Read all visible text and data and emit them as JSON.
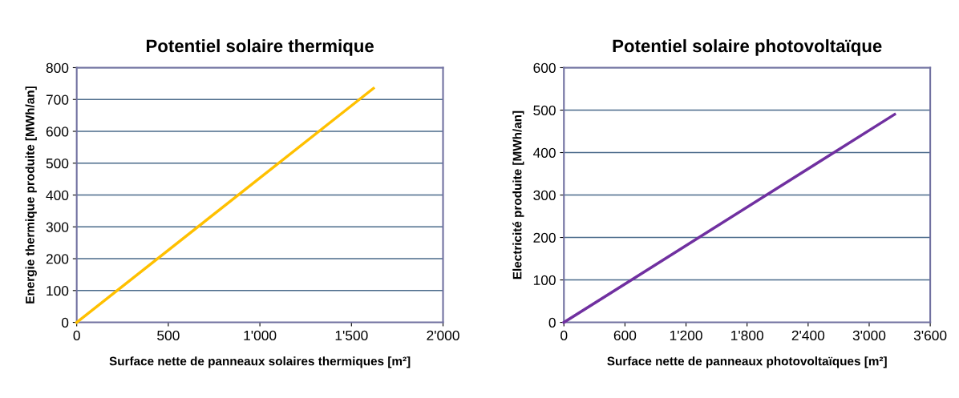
{
  "chart_data": [
    {
      "type": "line",
      "title": "Potentiel solaire thermique",
      "xlabel": "Surface nette de panneaux solaires thermiques [m²]",
      "ylabel": "Energie thermique produite [MWh/an]",
      "series": [
        {
          "color": "#ffc000",
          "x": [
            0,
            1620
          ],
          "values": [
            0,
            735
          ]
        }
      ],
      "xlim": [
        0,
        2000
      ],
      "xticks": [
        0,
        500,
        {
          "value": 1000,
          "label": "1'000"
        },
        {
          "value": 1500,
          "label": "1'500"
        },
        {
          "value": 2000,
          "label": "2'000"
        }
      ],
      "ylim": [
        0,
        800
      ],
      "yticks": [
        0,
        100,
        200,
        300,
        400,
        500,
        600,
        700,
        800
      ],
      "grid": "y",
      "legend": false,
      "marker": "none",
      "line_style": "solid"
    },
    {
      "type": "line",
      "title": "Potentiel solaire photovoltaïque",
      "xlabel": "Surface nette de panneaux photovoltaïques [m²]",
      "ylabel": "Electricité produite [MWh/an]",
      "series": [
        {
          "color": "#7030a0",
          "x": [
            0,
            3250
          ],
          "values": [
            0,
            490
          ]
        }
      ],
      "xlim": [
        0,
        3600
      ],
      "xticks": [
        0,
        600,
        {
          "value": 1200,
          "label": "1'200"
        },
        {
          "value": 1800,
          "label": "1'800"
        },
        {
          "value": 2400,
          "label": "2'400"
        },
        {
          "value": 3000,
          "label": "3'000"
        },
        {
          "value": 3600,
          "label": "3'600"
        }
      ],
      "ylim": [
        0,
        600
      ],
      "yticks": [
        0,
        100,
        200,
        300,
        400,
        500,
        600
      ],
      "grid": "y",
      "legend": false,
      "marker": "none",
      "line_style": "solid"
    }
  ]
}
